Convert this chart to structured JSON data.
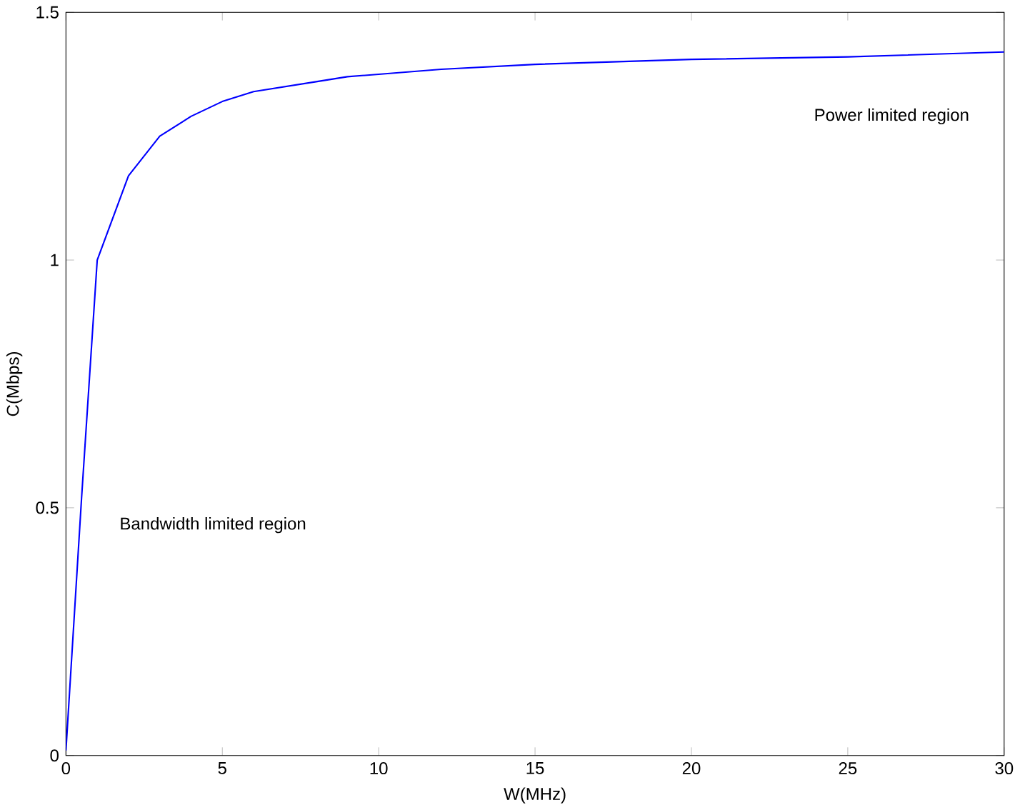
{
  "chart_data": {
    "type": "line",
    "xlabel": "W(MHz)",
    "ylabel": "C(Mbps)",
    "annotations": [
      "Power limited region",
      "Bandwidth limited region"
    ],
    "series": [
      {
        "color": "#0000ff",
        "x": [
          0,
          0.5,
          1,
          2,
          3,
          4,
          5,
          6,
          7,
          8,
          9,
          10,
          12,
          15,
          20,
          25,
          30
        ],
        "values": [
          0.01,
          0.52,
          1.0,
          1.17,
          1.25,
          1.29,
          1.32,
          1.34,
          1.35,
          1.36,
          1.37,
          1.375,
          1.385,
          1.395,
          1.405,
          1.41,
          1.42
        ]
      }
    ],
    "xlim": [
      0,
      30
    ],
    "ylim": [
      0,
      1.5
    ],
    "xticks": [
      0,
      5,
      10,
      15,
      20,
      25,
      30
    ],
    "yticks": [
      0,
      0.5,
      1,
      1.5
    ],
    "grid": false,
    "marker": "none",
    "line_style": "solid"
  }
}
